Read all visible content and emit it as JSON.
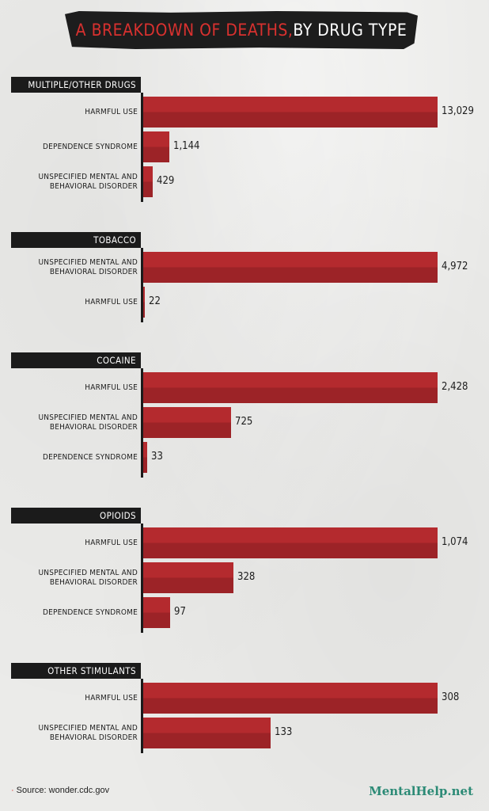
{
  "title": {
    "highlight": "A BREAKDOWN OF DEATHS,",
    "rest": " BY DRUG TYPE"
  },
  "colors": {
    "bar": "#b42a2e",
    "bar_dark": "#9c2327",
    "accent": "#d9312f",
    "brand": "#2b8a75"
  },
  "chart_data": {
    "type": "bar",
    "orientation": "horizontal",
    "scale": "each group scaled to its own largest value",
    "groups": [
      {
        "name": "MULTIPLE/OTHER DRUGS",
        "rows": [
          {
            "label": "HARMFUL USE",
            "value": 13029,
            "display": "13,029"
          },
          {
            "label": "DEPENDENCE SYNDROME",
            "value": 1144,
            "display": "1,144"
          },
          {
            "label": "UNSPECIFIED MENTAL AND\nBEHAVIORAL DISORDER",
            "value": 429,
            "display": "429"
          }
        ]
      },
      {
        "name": "TOBACCO",
        "rows": [
          {
            "label": "UNSPECIFIED MENTAL AND\nBEHAVIORAL DISORDER",
            "value": 4972,
            "display": "4,972"
          },
          {
            "label": "HARMFUL USE",
            "value": 22,
            "display": "22"
          }
        ]
      },
      {
        "name": "COCAINE",
        "rows": [
          {
            "label": "HARMFUL USE",
            "value": 2428,
            "display": "2,428"
          },
          {
            "label": "UNSPECIFIED MENTAL AND\nBEHAVIORAL DISORDER",
            "value": 725,
            "display": "725"
          },
          {
            "label": "DEPENDENCE SYNDROME",
            "value": 33,
            "display": "33"
          }
        ]
      },
      {
        "name": "OPIOIDS",
        "rows": [
          {
            "label": "HARMFUL USE",
            "value": 1074,
            "display": "1,074"
          },
          {
            "label": "UNSPECIFIED MENTAL AND\nBEHAVIORAL DISORDER",
            "value": 328,
            "display": "328"
          },
          {
            "label": "DEPENDENCE SYNDROME",
            "value": 97,
            "display": "97"
          }
        ]
      },
      {
        "name": "OTHER STIMULANTS",
        "rows": [
          {
            "label": "HARMFUL USE",
            "value": 308,
            "display": "308"
          },
          {
            "label": "UNSPECIFIED MENTAL AND\nBEHAVIORAL DISORDER",
            "value": 133,
            "display": "133"
          }
        ]
      }
    ]
  },
  "footer": {
    "source": "Source: wonder.cdc.gov",
    "brand": "MentalHelp.net"
  }
}
